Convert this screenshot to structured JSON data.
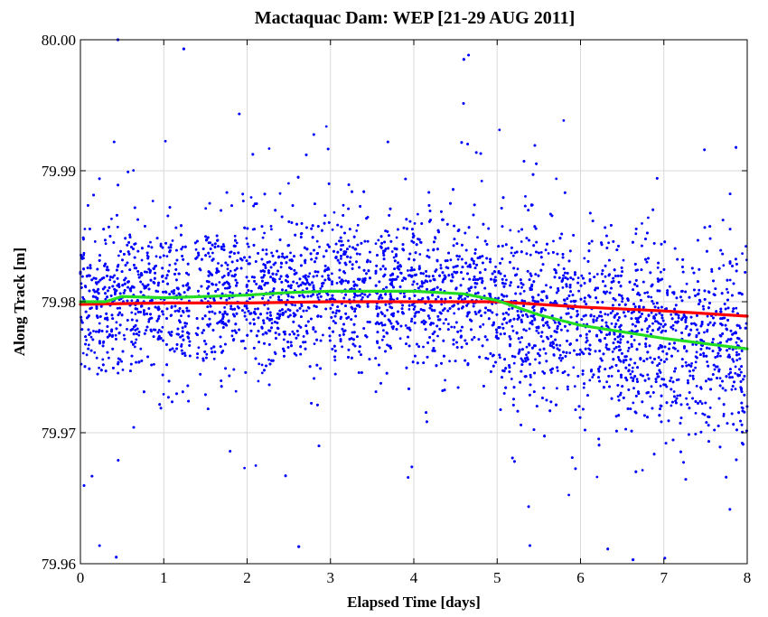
{
  "chart_data": {
    "type": "scatter",
    "title": "Mactaquac Dam: WEP [21-29 AUG 2011]",
    "xlabel": "Elapsed Time [days]",
    "ylabel": "Along Track [m]",
    "xlim": [
      0,
      8
    ],
    "ylim": [
      79.96,
      80.0
    ],
    "x_ticks": [
      "0",
      "1",
      "2",
      "3",
      "4",
      "5",
      "6",
      "7",
      "8"
    ],
    "y_ticks": [
      "79.96",
      "79.97",
      "79.98",
      "79.99",
      "80.00"
    ],
    "grid": true,
    "colors": {
      "scatter": "#0000ff",
      "red_line": "#ff0000",
      "green_line": "#22dd22"
    },
    "scatter_summary": {
      "description_points": "dense per-epoch positions; mean follows green line, typical spread about +/-0.006 m, extremes to 79.96 and 80.00",
      "gaps_days": [
        [
          1.32,
          1.38
        ],
        [
          3.48,
          3.54
        ]
      ],
      "outlier_extremes": [
        {
          "x": 0.45,
          "y": 80.0
        },
        {
          "x": 0.43,
          "y": 79.9605
        },
        {
          "x": 2.62,
          "y": 79.9613
        },
        {
          "x": 4.6,
          "y": 79.9985
        },
        {
          "x": 6.63,
          "y": 79.9603
        },
        {
          "x": 1.24,
          "y": 79.9993
        }
      ]
    },
    "series": [
      {
        "color": "#ff0000",
        "x": [
          0,
          1,
          2,
          3,
          4,
          5,
          6,
          7,
          8
        ],
        "y": [
          79.9798,
          79.9799,
          79.9799,
          79.98,
          79.98,
          79.98,
          79.9796,
          79.9793,
          79.9789
        ]
      },
      {
        "color": "#22dd22",
        "x": [
          0,
          0.3,
          0.5,
          1.0,
          1.5,
          2.0,
          2.5,
          3.0,
          3.5,
          4.0,
          4.6,
          5.0,
          5.5,
          6.0,
          6.5,
          7.0,
          7.5,
          8.0
        ],
        "y": [
          79.98,
          79.98,
          79.9804,
          79.9803,
          79.9804,
          79.9805,
          79.9807,
          79.9808,
          79.9808,
          79.9808,
          79.9806,
          79.9801,
          79.979,
          79.9782,
          79.9777,
          79.9772,
          79.9768,
          79.9764
        ]
      }
    ]
  }
}
